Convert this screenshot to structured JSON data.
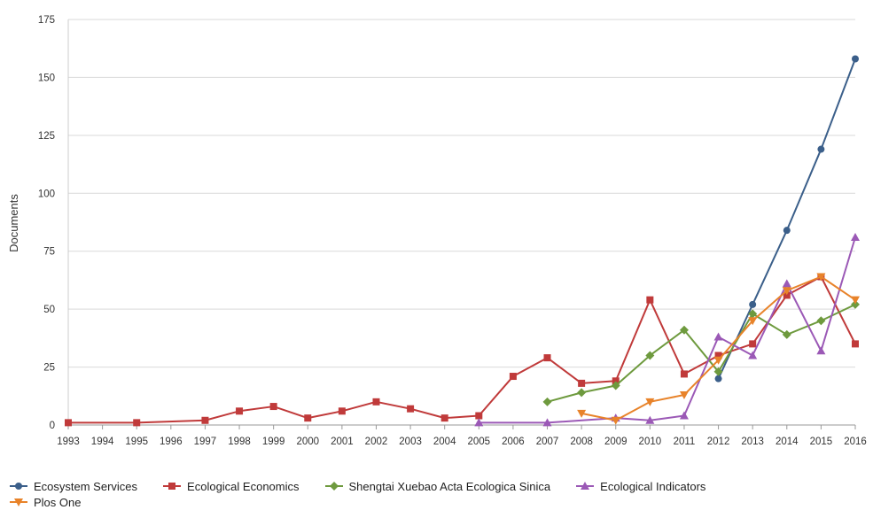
{
  "chart_data": {
    "type": "line",
    "title": "",
    "xlabel": "",
    "ylabel": "Documents",
    "ylim": [
      0,
      175
    ],
    "yticks": [
      0,
      25,
      50,
      75,
      100,
      125,
      150,
      175
    ],
    "xticks": [
      "1993",
      "1994",
      "1995",
      "1996",
      "1997",
      "1998",
      "1999",
      "2000",
      "2001",
      "2002",
      "2003",
      "2004",
      "2005",
      "2006",
      "2007",
      "2008",
      "2009",
      "2010",
      "2011",
      "2012",
      "2013",
      "2014",
      "2015",
      "2016"
    ],
    "grid": "horizontal",
    "legend_position": "bottom",
    "series": [
      {
        "name": "Ecosystem Services",
        "color": "#3b5f8a",
        "marker": "circle",
        "points": [
          [
            2012,
            20
          ],
          [
            2013,
            52
          ],
          [
            2014,
            84
          ],
          [
            2015,
            119
          ],
          [
            2016,
            158
          ]
        ]
      },
      {
        "name": "Ecological Economics",
        "color": "#c03a3a",
        "marker": "square",
        "points": [
          [
            1993,
            1
          ],
          [
            1995,
            1
          ],
          [
            1997,
            2
          ],
          [
            1998,
            6
          ],
          [
            1999,
            8
          ],
          [
            2000,
            3
          ],
          [
            2001,
            6
          ],
          [
            2002,
            10
          ],
          [
            2003,
            7
          ],
          [
            2004,
            3
          ],
          [
            2005,
            4
          ],
          [
            2006,
            21
          ],
          [
            2007,
            29
          ],
          [
            2008,
            18
          ],
          [
            2009,
            19
          ],
          [
            2010,
            54
          ],
          [
            2011,
            22
          ],
          [
            2012,
            30
          ],
          [
            2013,
            35
          ],
          [
            2014,
            56
          ],
          [
            2015,
            64
          ],
          [
            2016,
            35
          ]
        ]
      },
      {
        "name": "Shengtai Xuebao Acta Ecologica Sinica",
        "color": "#6e9a3e",
        "marker": "diamond",
        "points": [
          [
            2007,
            10
          ],
          [
            2008,
            14
          ],
          [
            2009,
            17
          ],
          [
            2010,
            30
          ],
          [
            2011,
            41
          ],
          [
            2012,
            23
          ],
          [
            2013,
            48
          ],
          [
            2014,
            39
          ],
          [
            2015,
            45
          ],
          [
            2016,
            52
          ]
        ]
      },
      {
        "name": "Ecological Indicators",
        "color": "#9b59b6",
        "marker": "triangle-up",
        "points": [
          [
            2005,
            1
          ],
          [
            2007,
            1
          ],
          [
            2009,
            3
          ],
          [
            2010,
            2
          ],
          [
            2011,
            4
          ],
          [
            2012,
            38
          ],
          [
            2013,
            30
          ],
          [
            2014,
            61
          ],
          [
            2015,
            32
          ],
          [
            2016,
            81
          ]
        ]
      },
      {
        "name": "Plos One",
        "color": "#e8832a",
        "marker": "triangle-down",
        "points": [
          [
            2008,
            5
          ],
          [
            2009,
            2
          ],
          [
            2010,
            10
          ],
          [
            2011,
            13
          ],
          [
            2012,
            28
          ],
          [
            2013,
            45
          ],
          [
            2014,
            58
          ],
          [
            2015,
            64
          ],
          [
            2016,
            54
          ]
        ]
      }
    ]
  }
}
